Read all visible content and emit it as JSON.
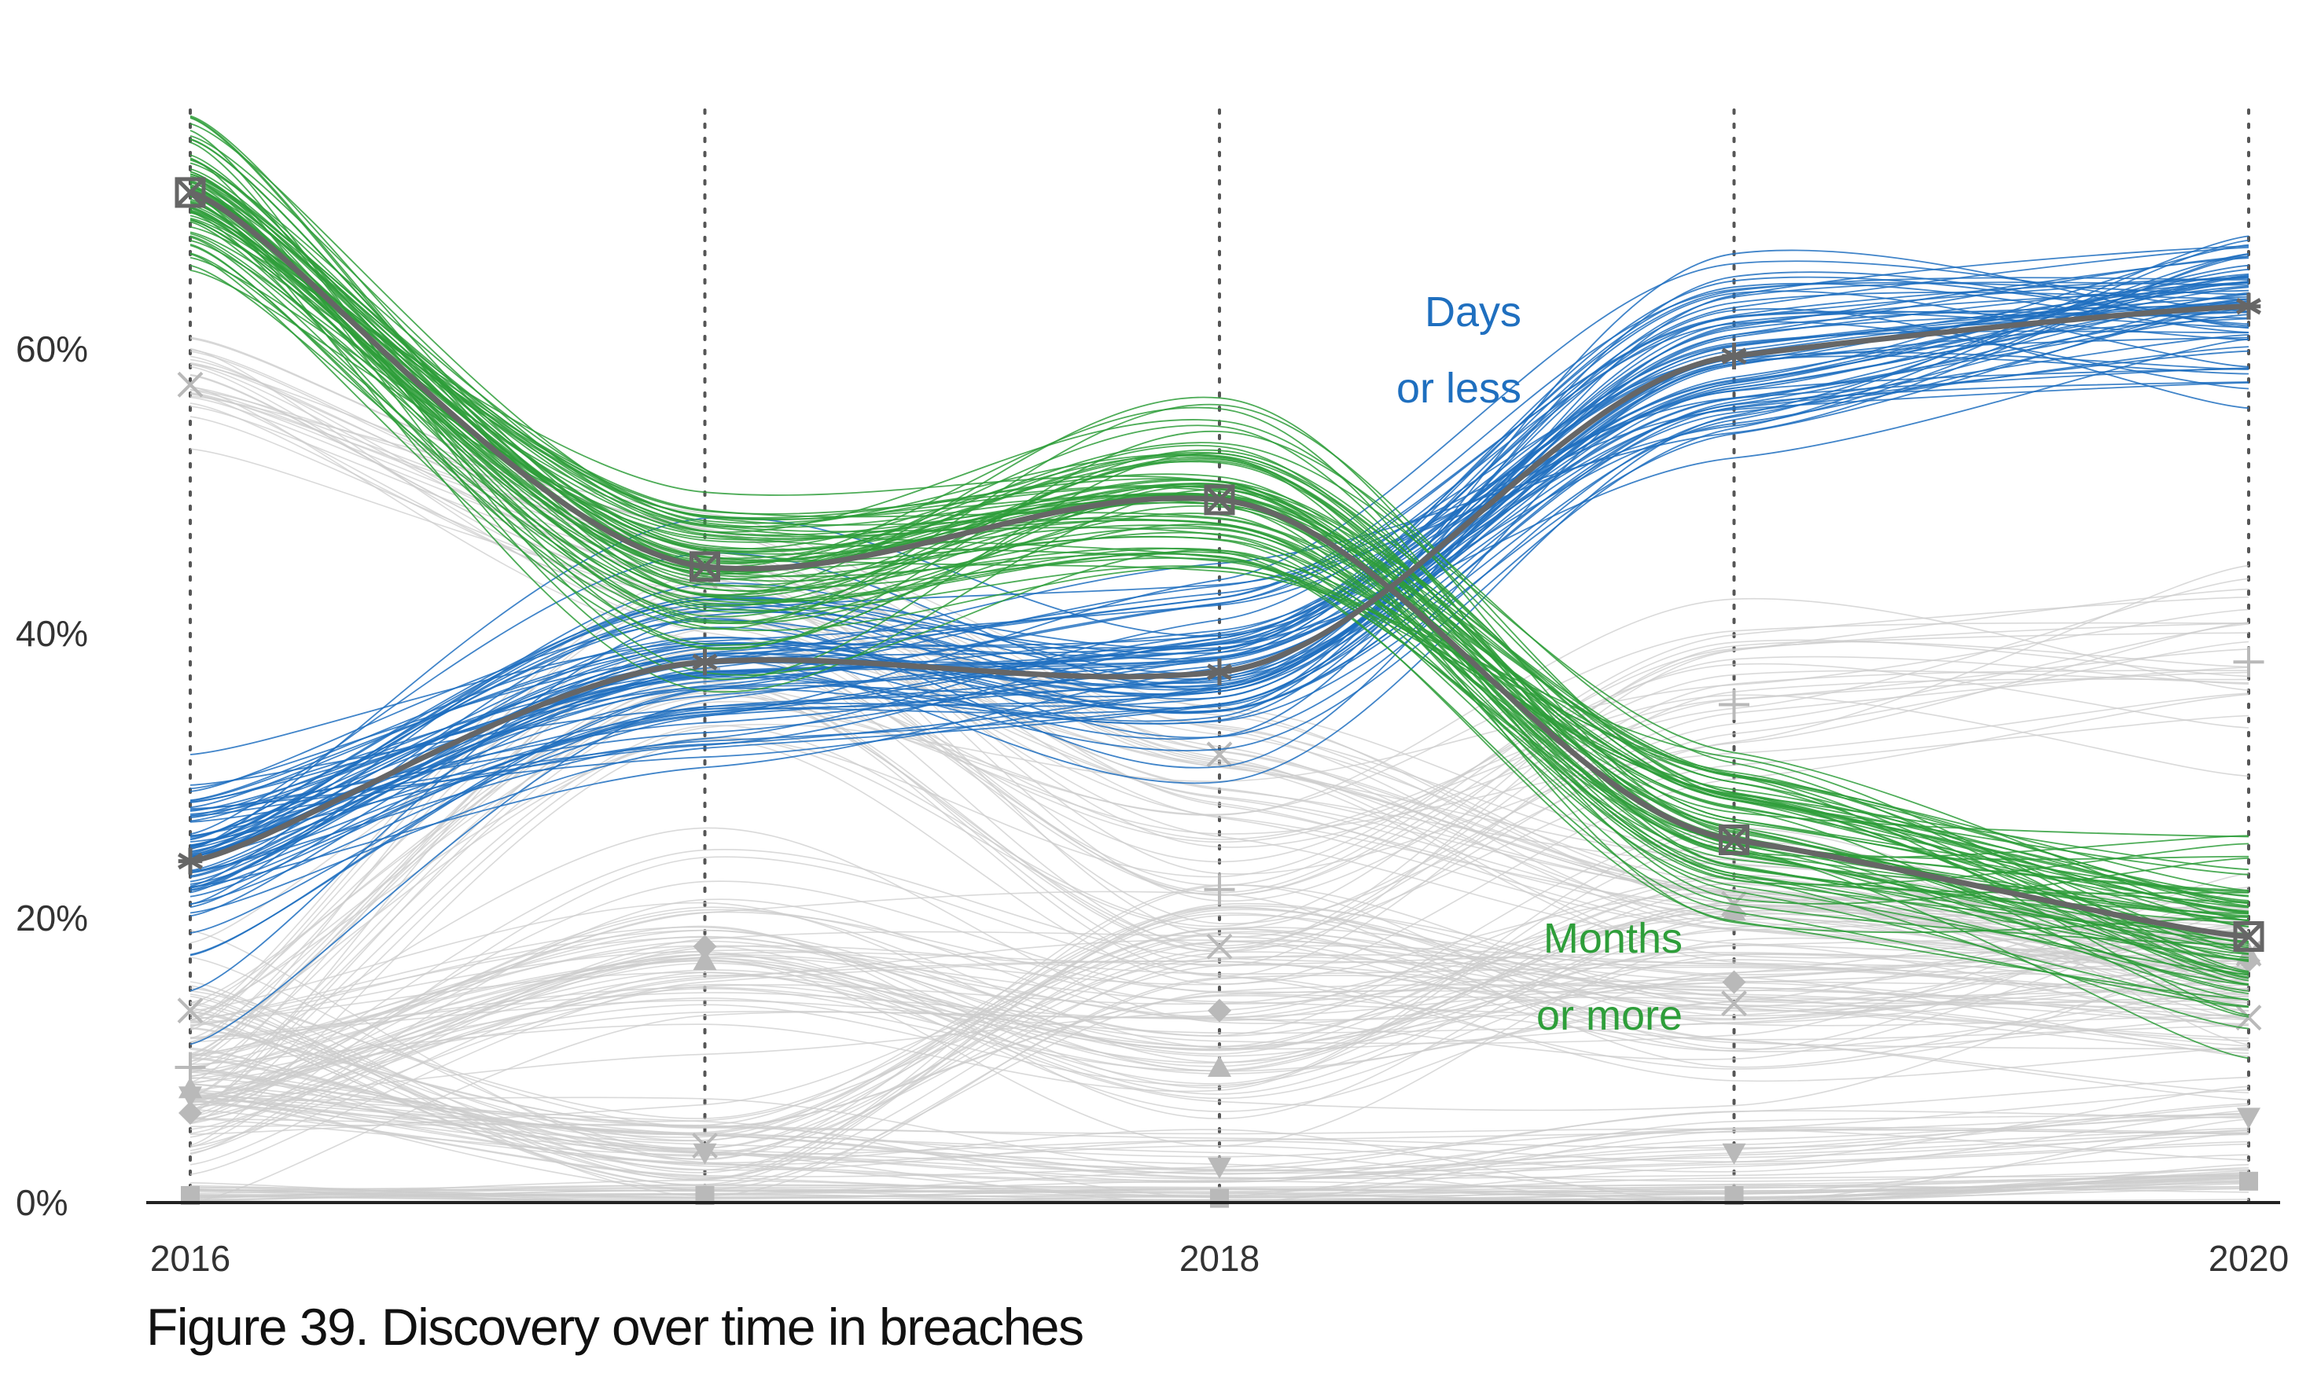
{
  "caption": "Figure 39. Discovery over time in breaches",
  "chart_data": {
    "type": "line",
    "title": "",
    "xlabel": "",
    "ylabel": "",
    "x": [
      2016,
      2017,
      2018,
      2019,
      2020
    ],
    "x_tick_labels": [
      {
        "x": 2016,
        "label": "2016"
      },
      {
        "x": 2018,
        "label": "2018"
      },
      {
        "x": 2020,
        "label": "2020"
      }
    ],
    "y_ticks": [
      {
        "value": 0,
        "label": "0%"
      },
      {
        "value": 20,
        "label": "20%"
      },
      {
        "value": 40,
        "label": "40%"
      },
      {
        "value": 60,
        "label": "60%"
      }
    ],
    "ylim": [
      0,
      77
    ],
    "xlim": [
      2016,
      2020
    ],
    "vertical_grid": true,
    "highlighted_series": [
      {
        "key": "days",
        "label_lines": [
          "Days",
          "or less"
        ],
        "color": "#1f6fbf",
        "values": [
          24,
          38,
          37.3,
          59.5,
          63
        ],
        "marker": "asterisk",
        "sample_spread": 3.2
      },
      {
        "key": "months",
        "label_lines": [
          "Months",
          "or more"
        ],
        "color": "#2e9e3a",
        "values": [
          71,
          44.7,
          49.4,
          25.5,
          18.7
        ],
        "marker": "boxed-x",
        "sample_spread": 3.0
      }
    ],
    "background_series_color": "#cccccc",
    "background_series": [
      {
        "values": [
          57.5,
          44,
          31.5,
          21,
          17.5
        ],
        "marker": "x",
        "spread": 2.2
      },
      {
        "values": [
          9.5,
          37.5,
          22,
          35,
          38
        ],
        "marker": "plus",
        "spread": 3.5
      },
      {
        "values": [
          13.5,
          4,
          18,
          14,
          13
        ],
        "marker": "x",
        "spread": 2.5
      },
      {
        "values": [
          6.3,
          18,
          13.5,
          15.5,
          17
        ],
        "marker": "diamond",
        "spread": 3.0
      },
      {
        "values": [
          8,
          17,
          9.5,
          20.5,
          17.5
        ],
        "marker": "triangle-up",
        "spread": 2.5
      },
      {
        "values": [
          7.5,
          3.5,
          2.5,
          3.5,
          6
        ],
        "marker": "triangle-down",
        "spread": 1.8
      },
      {
        "values": [
          0.5,
          0.5,
          0.3,
          0.5,
          1.5
        ],
        "marker": "square",
        "spread": 0.5
      }
    ],
    "samples_per_highlight": 70,
    "samples_per_background": 26
  },
  "colors": {
    "median_line": "#666666",
    "axis": "#222222",
    "grid": "#555555"
  }
}
